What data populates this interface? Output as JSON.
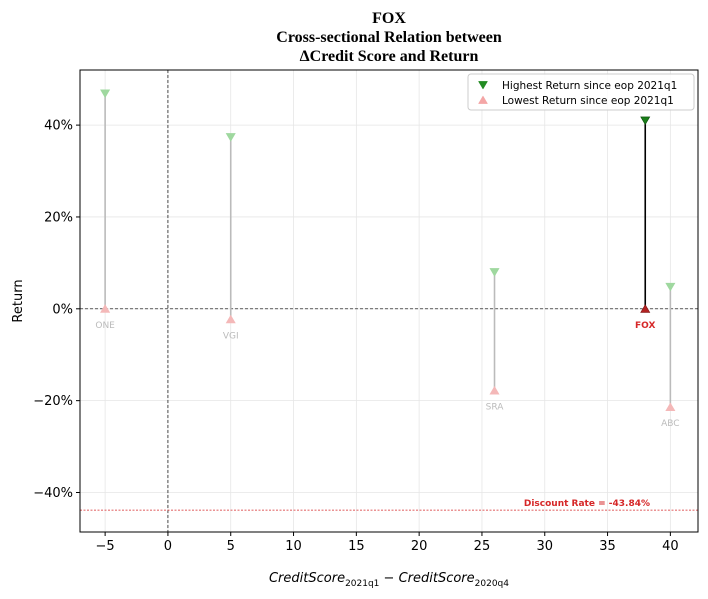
{
  "chart_data": {
    "type": "scatter",
    "title_lines": [
      "FOX",
      "Cross-sectional Relation between",
      "ΔCredit Score and Return"
    ],
    "xlabel": {
      "parts": [
        {
          "text": "CreditScore",
          "sub": false
        },
        {
          "text": "2021q1",
          "sub": true
        },
        {
          "text": " − ",
          "sub": false
        },
        {
          "text": "CreditScore",
          "sub": false
        },
        {
          "text": "2020q4",
          "sub": true
        }
      ]
    },
    "ylabel": "Return",
    "xlim": [
      -7,
      42.2
    ],
    "ylim": [
      -0.486,
      0.52
    ],
    "xticks": [
      {
        "value": -5,
        "label": "−5"
      },
      {
        "value": 0,
        "label": "0"
      },
      {
        "value": 5,
        "label": "5"
      },
      {
        "value": 10,
        "label": "10"
      },
      {
        "value": 15,
        "label": "15"
      },
      {
        "value": 20,
        "label": "20"
      },
      {
        "value": 25,
        "label": "25"
      },
      {
        "value": 30,
        "label": "30"
      },
      {
        "value": 35,
        "label": "35"
      },
      {
        "value": 40,
        "label": "40"
      }
    ],
    "yticks": [
      {
        "value": -0.4,
        "label": "−40%"
      },
      {
        "value": -0.2,
        "label": "−20%"
      },
      {
        "value": 0,
        "label": "0%"
      },
      {
        "value": 0.2,
        "label": "20%"
      },
      {
        "value": 0.4,
        "label": "40%"
      }
    ],
    "grid": true,
    "legend_position": "top-right",
    "legend": [
      {
        "name": "Highest Return since eop 2021q1",
        "marker": "triangle-down",
        "color": "#228b22"
      },
      {
        "name": "Lowest Return since eop 2021q1",
        "marker": "triangle-up",
        "color": "#f4a6a6"
      }
    ],
    "points": [
      {
        "label": "ONE",
        "x": -5,
        "high": 0.469,
        "low": 0.0,
        "highlight": false
      },
      {
        "label": "VGI",
        "x": 5,
        "high": 0.374,
        "low": -0.023,
        "highlight": false
      },
      {
        "label": "SRA",
        "x": 26,
        "high": 0.08,
        "low": -0.178,
        "highlight": false
      },
      {
        "label": "FOX",
        "x": 38,
        "high": 0.41,
        "low": 0.0,
        "highlight": true
      },
      {
        "label": "ABC",
        "x": 40,
        "high": 0.048,
        "low": -0.214,
        "highlight": false
      }
    ],
    "reference_lines": {
      "vertical_x": 0,
      "horizontal_y": 0
    },
    "discount_rate": {
      "value": -0.4384,
      "label": "Discount Rate = -43.84%",
      "color": "#d62728"
    },
    "colors": {
      "high_faint": "#9fd89f",
      "low_faint": "#f4b8b8",
      "high_strong": "#1a7f1a",
      "low_strong": "#b22222",
      "connector_faint": "#bbbbbb",
      "connector_strong": "#000000",
      "label_faint": "#bbbbbb",
      "label_strong": "#d62728"
    }
  }
}
